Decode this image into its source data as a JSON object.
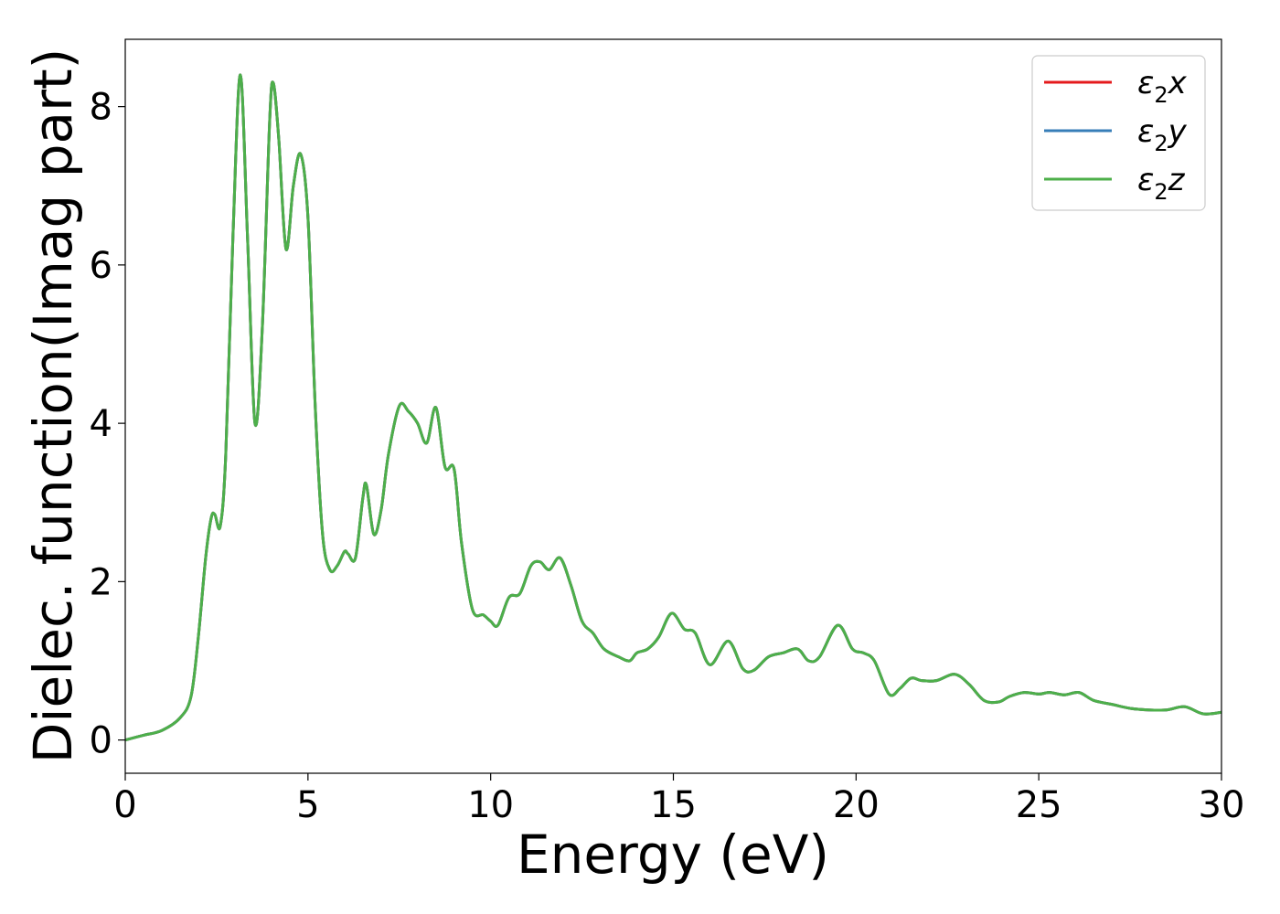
{
  "chart_data": {
    "type": "line",
    "title": "",
    "xlabel": "Energy (eV)",
    "ylabel": "Dielec. function(Imag part)",
    "xlim": [
      0,
      30
    ],
    "ylim": [
      -0.42,
      8.85
    ],
    "xticks": [
      0,
      5,
      10,
      15,
      20,
      25,
      30
    ],
    "yticks": [
      0,
      2,
      4,
      6,
      8
    ],
    "xtick_labels": [
      "0",
      "5",
      "10",
      "15",
      "20",
      "25",
      "30"
    ],
    "ytick_labels": [
      "0",
      "2",
      "4",
      "6",
      "8"
    ],
    "grid": false,
    "legend_position": "top-right",
    "x": [
      0,
      0.5,
      1.0,
      1.5,
      1.8,
      2.0,
      2.2,
      2.35,
      2.45,
      2.6,
      2.75,
      2.95,
      3.15,
      3.35,
      3.55,
      3.75,
      3.95,
      4.05,
      4.2,
      4.4,
      4.6,
      4.8,
      5.0,
      5.2,
      5.4,
      5.6,
      5.8,
      6.0,
      6.1,
      6.3,
      6.5,
      6.6,
      6.8,
      7.0,
      7.2,
      7.5,
      7.75,
      8.0,
      8.25,
      8.5,
      8.75,
      9.0,
      9.2,
      9.5,
      9.8,
      10.0,
      10.2,
      10.5,
      10.8,
      11.1,
      11.35,
      11.6,
      11.9,
      12.2,
      12.5,
      12.8,
      13.1,
      13.5,
      13.8,
      14.0,
      14.3,
      14.6,
      14.95,
      15.3,
      15.6,
      16.0,
      16.5,
      16.9,
      17.2,
      17.6,
      18.0,
      18.4,
      18.7,
      19.0,
      19.5,
      19.9,
      20.2,
      20.5,
      20.9,
      21.2,
      21.5,
      21.8,
      22.2,
      22.7,
      23.1,
      23.5,
      23.9,
      24.2,
      24.6,
      25.0,
      25.3,
      25.7,
      26.1,
      26.5,
      27.0,
      27.5,
      28.0,
      28.5,
      29.0,
      29.5,
      30.0
    ],
    "series": [
      {
        "name": "ε₂x",
        "color": "#e41a1c",
        "values": [
          0.0,
          0.06,
          0.12,
          0.28,
          0.55,
          1.3,
          2.3,
          2.8,
          2.85,
          2.7,
          3.6,
          6.4,
          8.4,
          6.3,
          4.0,
          5.2,
          7.8,
          8.3,
          7.6,
          6.2,
          7.0,
          7.4,
          6.6,
          4.2,
          2.6,
          2.15,
          2.2,
          2.38,
          2.35,
          2.3,
          3.05,
          3.22,
          2.6,
          2.9,
          3.6,
          4.22,
          4.15,
          4.0,
          3.75,
          4.2,
          3.45,
          3.42,
          2.5,
          1.65,
          1.58,
          1.5,
          1.45,
          1.8,
          1.85,
          2.2,
          2.25,
          2.15,
          2.3,
          1.95,
          1.5,
          1.35,
          1.15,
          1.05,
          1.0,
          1.1,
          1.15,
          1.3,
          1.6,
          1.4,
          1.35,
          0.95,
          1.25,
          0.9,
          0.88,
          1.05,
          1.1,
          1.15,
          1.0,
          1.05,
          1.45,
          1.15,
          1.1,
          1.0,
          0.58,
          0.65,
          0.78,
          0.75,
          0.75,
          0.83,
          0.7,
          0.5,
          0.48,
          0.55,
          0.6,
          0.58,
          0.6,
          0.57,
          0.6,
          0.5,
          0.45,
          0.4,
          0.38,
          0.38,
          0.42,
          0.33,
          0.35
        ]
      },
      {
        "name": "ε₂y",
        "color": "#377eb8",
        "values": [
          0.0,
          0.06,
          0.12,
          0.28,
          0.55,
          1.3,
          2.3,
          2.8,
          2.85,
          2.7,
          3.6,
          6.4,
          8.4,
          6.3,
          4.0,
          5.2,
          7.8,
          8.3,
          7.6,
          6.2,
          7.0,
          7.4,
          6.6,
          4.2,
          2.6,
          2.15,
          2.2,
          2.38,
          2.35,
          2.3,
          3.05,
          3.22,
          2.6,
          2.9,
          3.6,
          4.22,
          4.15,
          4.0,
          3.75,
          4.2,
          3.45,
          3.42,
          2.5,
          1.65,
          1.58,
          1.5,
          1.45,
          1.8,
          1.85,
          2.2,
          2.25,
          2.15,
          2.3,
          1.95,
          1.5,
          1.35,
          1.15,
          1.05,
          1.0,
          1.1,
          1.15,
          1.3,
          1.6,
          1.4,
          1.35,
          0.95,
          1.25,
          0.9,
          0.88,
          1.05,
          1.1,
          1.15,
          1.0,
          1.05,
          1.45,
          1.15,
          1.1,
          1.0,
          0.58,
          0.65,
          0.78,
          0.75,
          0.75,
          0.83,
          0.7,
          0.5,
          0.48,
          0.55,
          0.6,
          0.58,
          0.6,
          0.57,
          0.6,
          0.5,
          0.45,
          0.4,
          0.38,
          0.38,
          0.42,
          0.33,
          0.35
        ]
      },
      {
        "name": "ε₂z",
        "color": "#4daf4a",
        "values": [
          0.0,
          0.06,
          0.12,
          0.28,
          0.55,
          1.3,
          2.3,
          2.8,
          2.85,
          2.7,
          3.6,
          6.4,
          8.4,
          6.3,
          4.0,
          5.2,
          7.8,
          8.3,
          7.6,
          6.2,
          7.0,
          7.4,
          6.6,
          4.2,
          2.6,
          2.15,
          2.2,
          2.38,
          2.35,
          2.3,
          3.05,
          3.22,
          2.6,
          2.9,
          3.6,
          4.22,
          4.15,
          4.0,
          3.75,
          4.2,
          3.45,
          3.42,
          2.5,
          1.65,
          1.58,
          1.5,
          1.45,
          1.8,
          1.85,
          2.2,
          2.25,
          2.15,
          2.3,
          1.95,
          1.5,
          1.35,
          1.15,
          1.05,
          1.0,
          1.1,
          1.15,
          1.3,
          1.6,
          1.4,
          1.35,
          0.95,
          1.25,
          0.9,
          0.88,
          1.05,
          1.1,
          1.15,
          1.0,
          1.05,
          1.45,
          1.15,
          1.1,
          1.0,
          0.58,
          0.65,
          0.78,
          0.75,
          0.75,
          0.83,
          0.7,
          0.5,
          0.48,
          0.55,
          0.6,
          0.58,
          0.6,
          0.57,
          0.6,
          0.5,
          0.45,
          0.4,
          0.38,
          0.38,
          0.42,
          0.33,
          0.35
        ]
      }
    ],
    "legend": {
      "entries": [
        {
          "base": "ε",
          "sub": "2",
          "var": "x"
        },
        {
          "base": "ε",
          "sub": "2",
          "var": "y"
        },
        {
          "base": "ε",
          "sub": "2",
          "var": "z"
        }
      ]
    }
  }
}
